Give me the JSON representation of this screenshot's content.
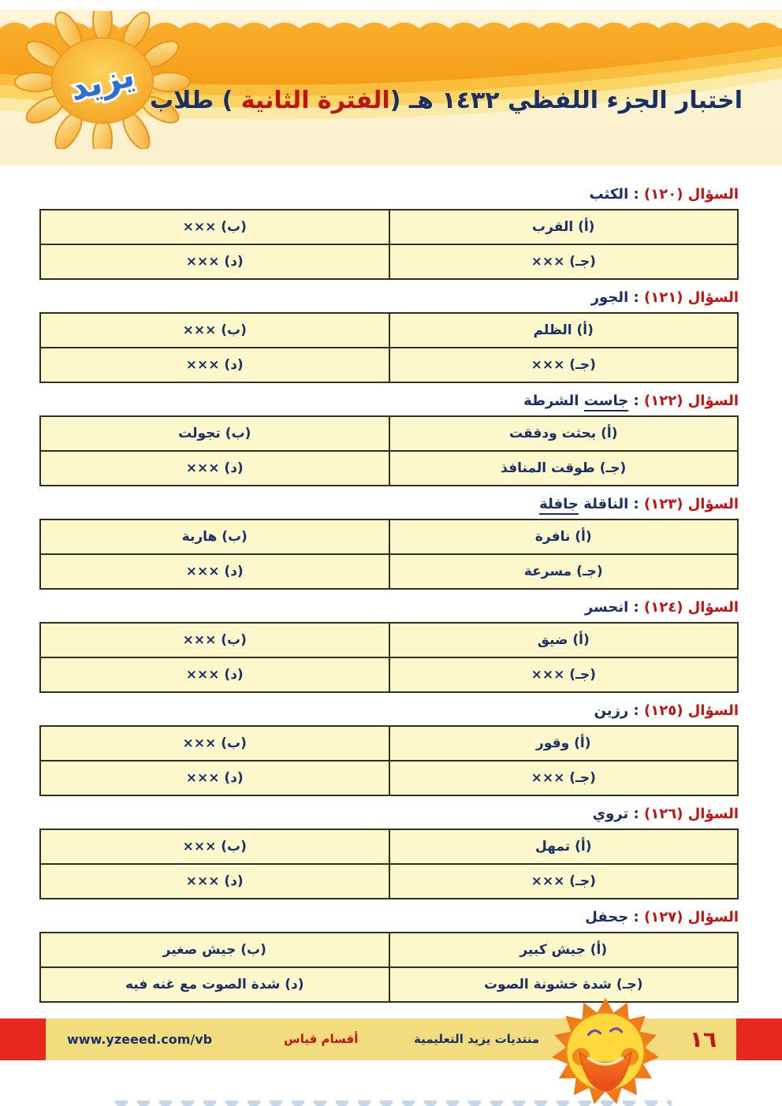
{
  "header": {
    "logo_text": "يزيد",
    "title_prefix": "اختبار الجزء اللفظي ١٤٣٢ هـ (",
    "title_highlight": "الفترة الثانية",
    "title_suffix": " ) طلاب"
  },
  "ui": {
    "question_separator": " : "
  },
  "questions": [
    {
      "label": "السؤال (١٢٠)",
      "keyword_parts": [
        {
          "text": "الكثب",
          "underline": false
        }
      ],
      "options": [
        {
          "letter": "أ",
          "text": "القرب"
        },
        {
          "letter": "ب",
          "text": "×××"
        },
        {
          "letter": "جـ",
          "text": "×××"
        },
        {
          "letter": "د",
          "text": "×××"
        }
      ]
    },
    {
      "label": "السؤال (١٢١)",
      "keyword_parts": [
        {
          "text": "الجور",
          "underline": false
        }
      ],
      "options": [
        {
          "letter": "أ",
          "text": "الظلم"
        },
        {
          "letter": "ب",
          "text": "×××"
        },
        {
          "letter": "جـ",
          "text": "×××"
        },
        {
          "letter": "د",
          "text": "×××"
        }
      ]
    },
    {
      "label": "السؤال (١٢٢)",
      "keyword_parts": [
        {
          "text": "جاست",
          "underline": true
        },
        {
          "text": " الشرطة",
          "underline": false
        }
      ],
      "options": [
        {
          "letter": "أ",
          "text": "بحثت ودققت"
        },
        {
          "letter": "ب",
          "text": "تجولت"
        },
        {
          "letter": "جـ",
          "text": "طوقت المنافذ"
        },
        {
          "letter": "د",
          "text": "×××"
        }
      ]
    },
    {
      "label": "السؤال (١٢٣)",
      "keyword_parts": [
        {
          "text": "الناقلة ",
          "underline": false
        },
        {
          "text": "جافلة",
          "underline": true
        }
      ],
      "options": [
        {
          "letter": "أ",
          "text": "نافرة"
        },
        {
          "letter": "ب",
          "text": "هاربة"
        },
        {
          "letter": "جـ",
          "text": "مسرعة"
        },
        {
          "letter": "د",
          "text": "×××"
        }
      ]
    },
    {
      "label": "السؤال (١٢٤)",
      "keyword_parts": [
        {
          "text": "انحسر",
          "underline": false
        }
      ],
      "options": [
        {
          "letter": "أ",
          "text": "ضيق"
        },
        {
          "letter": "ب",
          "text": "×××"
        },
        {
          "letter": "جـ",
          "text": "×××"
        },
        {
          "letter": "د",
          "text": "×××"
        }
      ]
    },
    {
      "label": "السؤال (١٢٥)",
      "keyword_parts": [
        {
          "text": "رزين",
          "underline": false
        }
      ],
      "options": [
        {
          "letter": "أ",
          "text": "وقور"
        },
        {
          "letter": "ب",
          "text": "×××"
        },
        {
          "letter": "جـ",
          "text": "×××"
        },
        {
          "letter": "د",
          "text": "×××"
        }
      ]
    },
    {
      "label": "السؤال (١٢٦)",
      "keyword_parts": [
        {
          "text": "تروي",
          "underline": false
        }
      ],
      "options": [
        {
          "letter": "أ",
          "text": "تمهل"
        },
        {
          "letter": "ب",
          "text": "×××"
        },
        {
          "letter": "جـ",
          "text": "×××"
        },
        {
          "letter": "د",
          "text": "×××"
        }
      ]
    },
    {
      "label": "السؤال (١٢٧)",
      "keyword_parts": [
        {
          "text": "جحفل",
          "underline": false
        }
      ],
      "options": [
        {
          "letter": "أ",
          "text": "جيش كبير"
        },
        {
          "letter": "ب",
          "text": "جيش صغير"
        },
        {
          "letter": "جـ",
          "text": "شدة خشونة الصوت"
        },
        {
          "letter": "د",
          "text": "شدة الصوت مع غنه فيه"
        }
      ]
    }
  ],
  "footer": {
    "url": "www.yzeeed.com/vb",
    "qiyas_label": "أقسام قياس",
    "forum_label": "منتديات يزيد التعليمية",
    "page_number": "١٦"
  },
  "colors": {
    "question_red": "#C31212",
    "navy": "#1A2F66",
    "cell_bg": "#FCF8CC",
    "header_orange": "#F6A41E",
    "footer_yellow": "#F2DC7D",
    "footer_red": "#E8281E"
  }
}
